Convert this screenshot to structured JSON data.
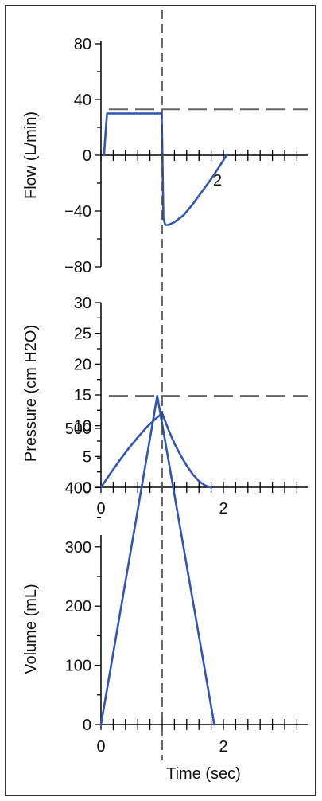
{
  "chart_data": [
    {
      "type": "line",
      "ylabel": "Flow (L/min)",
      "xlabel": "",
      "ylim": [
        -80,
        80
      ],
      "xlim": [
        0,
        3.4
      ],
      "yticks_major": [
        80,
        40,
        0,
        -40,
        -80
      ],
      "ytick_labels": [
        "80",
        "40",
        "0",
        "−40",
        "−80"
      ],
      "annotation": "2",
      "reference_value": 33,
      "series": [
        {
          "x": [
            0.05,
            0.08,
            0.1,
            0.95,
            0.99,
            1.0,
            1.02,
            1.05,
            1.1,
            1.2,
            1.35,
            1.5,
            1.65,
            1.8,
            1.95,
            2.05
          ],
          "y": [
            0,
            20,
            30,
            30,
            30,
            10,
            -45,
            -50,
            -50,
            -48,
            -43,
            -35,
            -26,
            -17,
            -7,
            0
          ]
        }
      ]
    },
    {
      "type": "line",
      "ylabel": "Pressure (cm H2O)",
      "xlabel": "",
      "ylim": [
        0,
        30
      ],
      "xlim": [
        0,
        3.4
      ],
      "yticks_major": [
        30,
        25,
        20,
        15,
        10,
        5,
        0
      ],
      "ytick_labels": [
        "30",
        "25",
        "20",
        "15",
        "10",
        "5",
        "0"
      ],
      "xtick_labels": [
        "0",
        "2"
      ],
      "xtick_values": [
        0,
        2
      ],
      "series": [
        {
          "x": [
            0,
            0.15,
            0.3,
            0.45,
            0.6,
            0.75,
            0.9,
            1.0,
            1.1,
            1.2,
            1.3,
            1.4,
            1.5,
            1.6,
            1.7,
            1.8
          ],
          "y": [
            0,
            2.2,
            4.3,
            6.3,
            8.1,
            9.8,
            11.2,
            12,
            9.4,
            7.1,
            5.2,
            3.5,
            2.1,
            1.0,
            0.3,
            0
          ]
        }
      ]
    },
    {
      "type": "line",
      "ylabel": "Volume (mL)",
      "xlabel": "Time (sec)",
      "ylim": [
        0,
        560
      ],
      "xlim": [
        0,
        3.4
      ],
      "yticks_major": [
        500,
        400,
        300,
        200,
        100,
        0
      ],
      "ytick_labels": [
        "500",
        "400",
        "300",
        "200",
        "100",
        "0"
      ],
      "xtick_labels": [
        "0",
        "2"
      ],
      "xtick_values": [
        0,
        2
      ],
      "reference_value": 555,
      "series": [
        {
          "x": [
            0,
            0.92,
            1.85
          ],
          "y": [
            0,
            555,
            0
          ]
        }
      ]
    }
  ],
  "vertical_marker_x": 1.0
}
